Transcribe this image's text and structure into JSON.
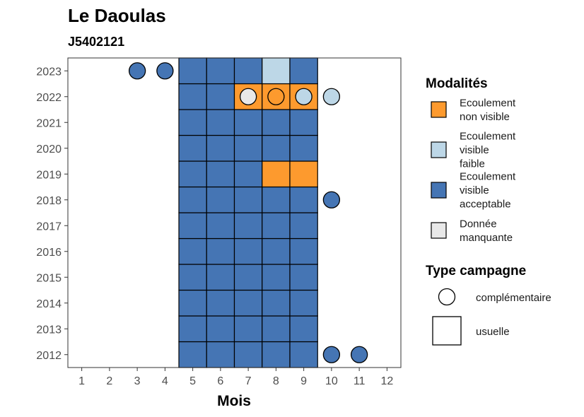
{
  "chart_data": {
    "type": "heatmap",
    "title": "Le Daoulas",
    "subtitle": "J5402121",
    "xlabel": "Mois",
    "ylabel": "",
    "x_ticks": [
      "1",
      "2",
      "3",
      "4",
      "5",
      "6",
      "7",
      "8",
      "9",
      "10",
      "11",
      "12"
    ],
    "y_ticks": [
      "2012",
      "2013",
      "2014",
      "2015",
      "2016",
      "2017",
      "2018",
      "2019",
      "2020",
      "2021",
      "2022",
      "2023"
    ],
    "xlim": [
      0.5,
      12.5
    ],
    "ylim": [
      2011.5,
      2023.5
    ],
    "grid": false,
    "legend_placement": "right",
    "fill_legend": {
      "title": "Modalités",
      "items": [
        {
          "key": "nv",
          "lines": [
            "Ecoulement",
            "non visible"
          ],
          "color": "#fd9a2e"
        },
        {
          "key": "vf",
          "lines": [
            "Ecoulement",
            "visible",
            "faible"
          ],
          "color": "#bdd7e7"
        },
        {
          "key": "va",
          "lines": [
            "Ecoulement",
            "visible",
            "acceptable"
          ],
          "color": "#4575b4"
        },
        {
          "key": "dm",
          "lines": [
            "Donnée",
            "manquante"
          ],
          "color": "#e8e8e8"
        }
      ]
    },
    "shape_legend": {
      "title": "Type campagne",
      "items": [
        {
          "key": "circle",
          "label": "complémentaire"
        },
        {
          "key": "square",
          "label": "usuelle"
        }
      ]
    },
    "points": [
      {
        "year": 2012,
        "month": 5,
        "type": "usuelle",
        "modalite": "va"
      },
      {
        "year": 2012,
        "month": 6,
        "type": "usuelle",
        "modalite": "va"
      },
      {
        "year": 2012,
        "month": 7,
        "type": "usuelle",
        "modalite": "va"
      },
      {
        "year": 2012,
        "month": 8,
        "type": "usuelle",
        "modalite": "va"
      },
      {
        "year": 2012,
        "month": 9,
        "type": "usuelle",
        "modalite": "va"
      },
      {
        "year": 2012,
        "month": 10,
        "type": "complementaire",
        "modalite": "va"
      },
      {
        "year": 2012,
        "month": 11,
        "type": "complementaire",
        "modalite": "va"
      },
      {
        "year": 2013,
        "month": 5,
        "type": "usuelle",
        "modalite": "va"
      },
      {
        "year": 2013,
        "month": 6,
        "type": "usuelle",
        "modalite": "va"
      },
      {
        "year": 2013,
        "month": 7,
        "type": "usuelle",
        "modalite": "va"
      },
      {
        "year": 2013,
        "month": 8,
        "type": "usuelle",
        "modalite": "va"
      },
      {
        "year": 2013,
        "month": 9,
        "type": "usuelle",
        "modalite": "va"
      },
      {
        "year": 2014,
        "month": 5,
        "type": "usuelle",
        "modalite": "va"
      },
      {
        "year": 2014,
        "month": 6,
        "type": "usuelle",
        "modalite": "va"
      },
      {
        "year": 2014,
        "month": 7,
        "type": "usuelle",
        "modalite": "va"
      },
      {
        "year": 2014,
        "month": 8,
        "type": "usuelle",
        "modalite": "va"
      },
      {
        "year": 2014,
        "month": 9,
        "type": "usuelle",
        "modalite": "va"
      },
      {
        "year": 2015,
        "month": 5,
        "type": "usuelle",
        "modalite": "va"
      },
      {
        "year": 2015,
        "month": 6,
        "type": "usuelle",
        "modalite": "va"
      },
      {
        "year": 2015,
        "month": 7,
        "type": "usuelle",
        "modalite": "va"
      },
      {
        "year": 2015,
        "month": 8,
        "type": "usuelle",
        "modalite": "va"
      },
      {
        "year": 2015,
        "month": 9,
        "type": "usuelle",
        "modalite": "va"
      },
      {
        "year": 2016,
        "month": 5,
        "type": "usuelle",
        "modalite": "va"
      },
      {
        "year": 2016,
        "month": 6,
        "type": "usuelle",
        "modalite": "va"
      },
      {
        "year": 2016,
        "month": 7,
        "type": "usuelle",
        "modalite": "va"
      },
      {
        "year": 2016,
        "month": 8,
        "type": "usuelle",
        "modalite": "va"
      },
      {
        "year": 2016,
        "month": 9,
        "type": "usuelle",
        "modalite": "va"
      },
      {
        "year": 2017,
        "month": 5,
        "type": "usuelle",
        "modalite": "va"
      },
      {
        "year": 2017,
        "month": 6,
        "type": "usuelle",
        "modalite": "va"
      },
      {
        "year": 2017,
        "month": 7,
        "type": "usuelle",
        "modalite": "va"
      },
      {
        "year": 2017,
        "month": 8,
        "type": "usuelle",
        "modalite": "va"
      },
      {
        "year": 2017,
        "month": 9,
        "type": "usuelle",
        "modalite": "va"
      },
      {
        "year": 2018,
        "month": 5,
        "type": "usuelle",
        "modalite": "va"
      },
      {
        "year": 2018,
        "month": 6,
        "type": "usuelle",
        "modalite": "va"
      },
      {
        "year": 2018,
        "month": 7,
        "type": "usuelle",
        "modalite": "va"
      },
      {
        "year": 2018,
        "month": 8,
        "type": "usuelle",
        "modalite": "va"
      },
      {
        "year": 2018,
        "month": 9,
        "type": "usuelle",
        "modalite": "va"
      },
      {
        "year": 2018,
        "month": 10,
        "type": "complementaire",
        "modalite": "va"
      },
      {
        "year": 2019,
        "month": 5,
        "type": "usuelle",
        "modalite": "va"
      },
      {
        "year": 2019,
        "month": 6,
        "type": "usuelle",
        "modalite": "va"
      },
      {
        "year": 2019,
        "month": 7,
        "type": "usuelle",
        "modalite": "va"
      },
      {
        "year": 2019,
        "month": 8,
        "type": "usuelle",
        "modalite": "nv"
      },
      {
        "year": 2019,
        "month": 9,
        "type": "usuelle",
        "modalite": "nv"
      },
      {
        "year": 2020,
        "month": 5,
        "type": "usuelle",
        "modalite": "va"
      },
      {
        "year": 2020,
        "month": 6,
        "type": "usuelle",
        "modalite": "va"
      },
      {
        "year": 2020,
        "month": 7,
        "type": "usuelle",
        "modalite": "va"
      },
      {
        "year": 2020,
        "month": 8,
        "type": "usuelle",
        "modalite": "va"
      },
      {
        "year": 2020,
        "month": 9,
        "type": "usuelle",
        "modalite": "va"
      },
      {
        "year": 2021,
        "month": 5,
        "type": "usuelle",
        "modalite": "va"
      },
      {
        "year": 2021,
        "month": 6,
        "type": "usuelle",
        "modalite": "va"
      },
      {
        "year": 2021,
        "month": 7,
        "type": "usuelle",
        "modalite": "va"
      },
      {
        "year": 2021,
        "month": 8,
        "type": "usuelle",
        "modalite": "va"
      },
      {
        "year": 2021,
        "month": 9,
        "type": "usuelle",
        "modalite": "va"
      },
      {
        "year": 2022,
        "month": 5,
        "type": "usuelle",
        "modalite": "va"
      },
      {
        "year": 2022,
        "month": 6,
        "type": "usuelle",
        "modalite": "va"
      },
      {
        "year": 2022,
        "month": 7,
        "type": "usuelle",
        "modalite": "nv"
      },
      {
        "year": 2022,
        "month": 8,
        "type": "usuelle",
        "modalite": "nv"
      },
      {
        "year": 2022,
        "month": 9,
        "type": "usuelle",
        "modalite": "nv"
      },
      {
        "year": 2022,
        "month": 7,
        "type": "complementaire",
        "modalite": "dm"
      },
      {
        "year": 2022,
        "month": 8,
        "type": "complementaire",
        "modalite": "nv"
      },
      {
        "year": 2022,
        "month": 9,
        "type": "complementaire",
        "modalite": "vf"
      },
      {
        "year": 2022,
        "month": 10,
        "type": "complementaire",
        "modalite": "vf"
      },
      {
        "year": 2023,
        "month": 3,
        "type": "complementaire",
        "modalite": "va"
      },
      {
        "year": 2023,
        "month": 4,
        "type": "complementaire",
        "modalite": "va"
      },
      {
        "year": 2023,
        "month": 5,
        "type": "usuelle",
        "modalite": "va"
      },
      {
        "year": 2023,
        "month": 6,
        "type": "usuelle",
        "modalite": "va"
      },
      {
        "year": 2023,
        "month": 7,
        "type": "usuelle",
        "modalite": "va"
      },
      {
        "year": 2023,
        "month": 8,
        "type": "usuelle",
        "modalite": "vf"
      },
      {
        "year": 2023,
        "month": 9,
        "type": "usuelle",
        "modalite": "va"
      }
    ]
  }
}
